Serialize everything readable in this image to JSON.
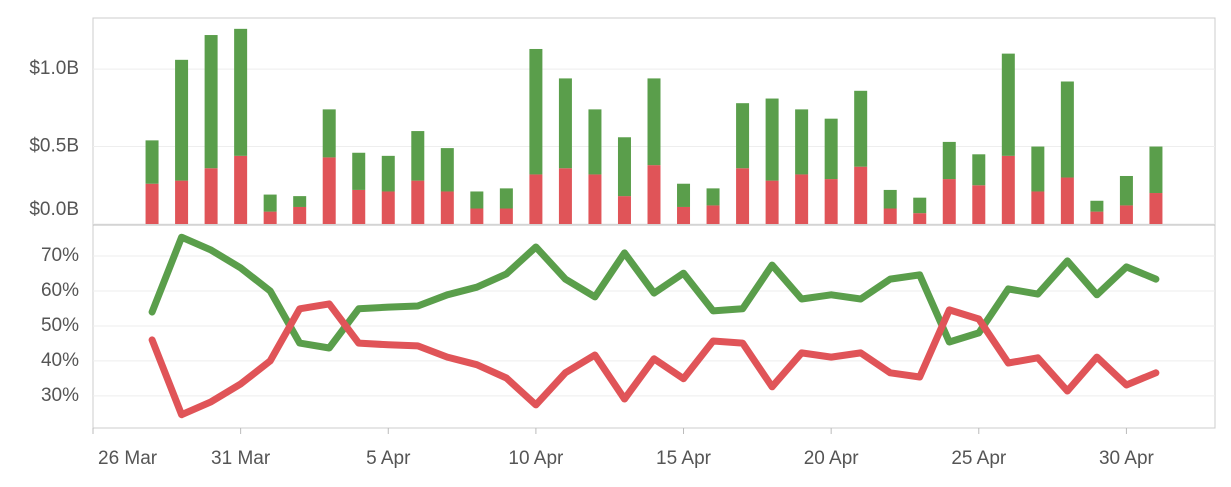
{
  "chart_data": [
    {
      "type": "bar",
      "stacked": true,
      "x": [
        "28 Mar",
        "29 Mar",
        "30 Mar",
        "31 Mar",
        "1 Apr",
        "2 Apr",
        "3 Apr",
        "4 Apr",
        "5 Apr",
        "6 Apr",
        "7 Apr",
        "8 Apr",
        "9 Apr",
        "10 Apr",
        "11 Apr",
        "12 Apr",
        "13 Apr",
        "14 Apr",
        "15 Apr",
        "16 Apr",
        "17 Apr",
        "18 Apr",
        "19 Apr",
        "20 Apr",
        "21 Apr",
        "22 Apr",
        "23 Apr",
        "24 Apr",
        "25 Apr",
        "26 Apr",
        "27 Apr",
        "28 Apr",
        "29 Apr",
        "30 Apr",
        "1 May"
      ],
      "xlim": [
        "26 Mar",
        "3 May"
      ],
      "series": [
        {
          "color": "#e05458",
          "values": [
            0.26,
            0.28,
            0.36,
            0.44,
            0.08,
            0.11,
            0.43,
            0.22,
            0.21,
            0.28,
            0.21,
            0.1,
            0.1,
            0.32,
            0.36,
            0.32,
            0.18,
            0.38,
            0.11,
            0.12,
            0.36,
            0.28,
            0.32,
            0.29,
            0.37,
            0.1,
            0.07,
            0.29,
            0.25,
            0.44,
            0.21,
            0.3,
            0.08,
            0.12,
            0.2
          ]
        },
        {
          "color": "#5a9e4b",
          "values": [
            0.28,
            0.78,
            0.86,
            0.82,
            0.11,
            0.07,
            0.31,
            0.24,
            0.23,
            0.32,
            0.28,
            0.11,
            0.13,
            0.81,
            0.58,
            0.42,
            0.38,
            0.56,
            0.15,
            0.11,
            0.42,
            0.53,
            0.42,
            0.39,
            0.49,
            0.12,
            0.1,
            0.24,
            0.2,
            0.66,
            0.29,
            0.62,
            0.07,
            0.19,
            0.3
          ]
        }
      ],
      "ylim": [
        0,
        1.33
      ],
      "yticks": [
        {
          "value": 0,
          "label": "$0.0B"
        },
        {
          "value": 0.5,
          "label": "$0.5B"
        },
        {
          "value": 1,
          "label": "$1.0B"
        }
      ],
      "grid": true
    },
    {
      "type": "line",
      "x": [
        "28 Mar",
        "29 Mar",
        "30 Mar",
        "31 Mar",
        "1 Apr",
        "2 Apr",
        "3 Apr",
        "4 Apr",
        "5 Apr",
        "6 Apr",
        "7 Apr",
        "8 Apr",
        "9 Apr",
        "10 Apr",
        "11 Apr",
        "12 Apr",
        "13 Apr",
        "14 Apr",
        "15 Apr",
        "16 Apr",
        "17 Apr",
        "18 Apr",
        "19 Apr",
        "20 Apr",
        "21 Apr",
        "22 Apr",
        "23 Apr",
        "24 Apr",
        "25 Apr",
        "26 Apr",
        "27 Apr",
        "28 Apr",
        "29 Apr",
        "30 Apr",
        "1 May"
      ],
      "xlim": [
        "26 Mar",
        "3 May"
      ],
      "xticks": [
        "26 Mar",
        "31 Mar",
        "5 Apr",
        "10 Apr",
        "15 Apr",
        "20 Apr",
        "25 Apr",
        "30 Apr"
      ],
      "series": [
        {
          "color": "#5a9e4b",
          "values": [
            54,
            75.4,
            71.7,
            66.6,
            60,
            45.1,
            43.7,
            54.9,
            55.4,
            55.7,
            58.9,
            61.1,
            64.9,
            72.6,
            63.4,
            58.3,
            70.9,
            59.4,
            65.1,
            54.3,
            54.9,
            67.4,
            57.7,
            58.9,
            57.7,
            63.4,
            64.6,
            45.4,
            48,
            60.6,
            59.1,
            68.6,
            58.9,
            66.9,
            63.4
          ]
        },
        {
          "color": "#e05458",
          "values": [
            46,
            24.6,
            28.3,
            33.4,
            40,
            54.9,
            56.3,
            45.1,
            44.6,
            44.3,
            41.1,
            38.9,
            35.1,
            27.4,
            36.6,
            41.7,
            29.1,
            40.6,
            34.9,
            45.7,
            45.1,
            32.6,
            42.3,
            41.1,
            42.3,
            36.6,
            35.4,
            54.6,
            52,
            39.4,
            40.9,
            31.4,
            41.1,
            33.1,
            36.6
          ]
        }
      ],
      "ylim": [
        20.8,
        78.6
      ],
      "yticks": [
        {
          "value": 30,
          "label": "30%"
        },
        {
          "value": 40,
          "label": "40%"
        },
        {
          "value": 50,
          "label": "50%"
        },
        {
          "value": 60,
          "label": "60%"
        },
        {
          "value": 70,
          "label": "70%"
        }
      ],
      "grid": true
    }
  ]
}
